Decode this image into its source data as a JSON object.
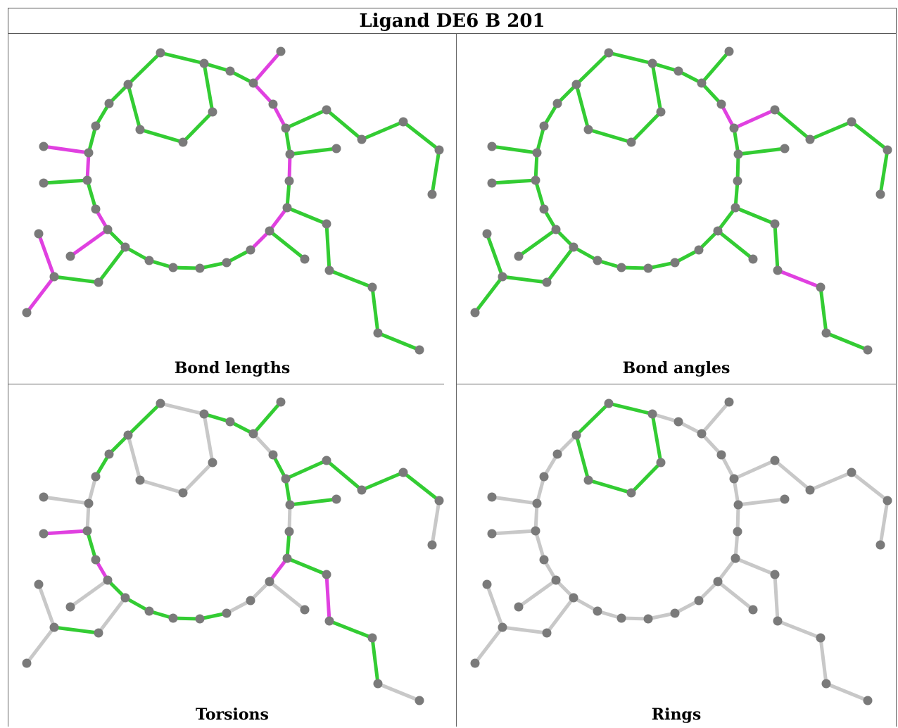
{
  "title": "Ligand DE6 B 201",
  "panels": [
    {
      "caption": "Bond lengths"
    },
    {
      "caption": "Bond angles"
    },
    {
      "caption": "Torsions"
    },
    {
      "caption": "Rings"
    }
  ],
  "colors": {
    "ok": "#33cc33",
    "outlier": "#e040e0",
    "neutral": "#c8c8c8",
    "atom": "#7a7a7a"
  }
}
